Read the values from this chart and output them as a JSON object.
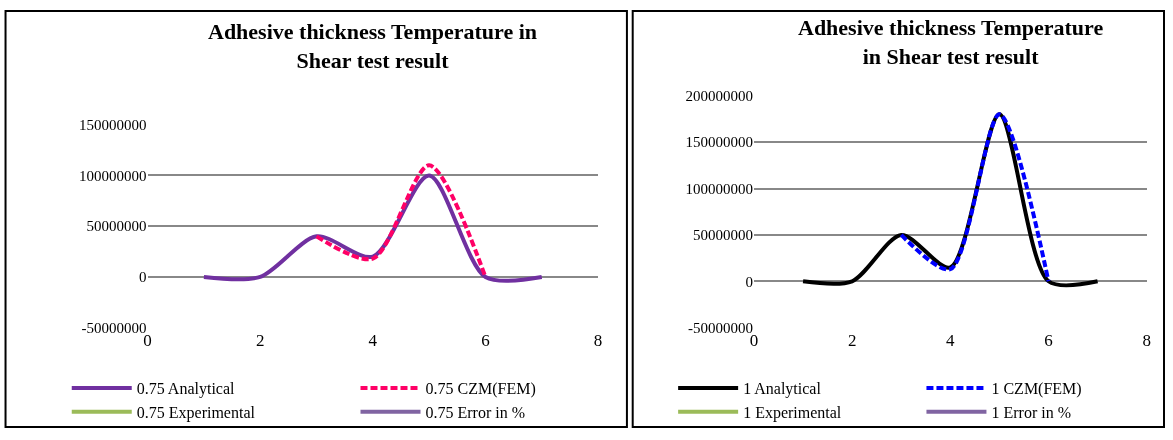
{
  "chart_data": [
    {
      "type": "line",
      "title": "Adhesive thickness Temperature in Shear test result",
      "x": [
        1,
        2,
        3,
        4,
        5,
        6,
        7
      ],
      "xlim": [
        0,
        8
      ],
      "xticks": [
        0,
        2,
        4,
        6,
        8
      ],
      "ylim": [
        -50000000,
        150000000
      ],
      "yticks": [
        -50000000,
        0,
        50000000,
        100000000,
        150000000
      ],
      "grid": "y",
      "legend": "bottom",
      "series": [
        {
          "name": "0.75 Analytical",
          "color": "#7030a0",
          "line_style": "solid",
          "values": [
            0,
            0,
            40000000,
            20000000,
            100000000,
            0,
            0
          ]
        },
        {
          "name": "0.75 CZM(FEM)",
          "color": "#ff0066",
          "line_style": "dashed",
          "values": [
            null,
            null,
            40000000,
            18000000,
            110000000,
            0,
            null
          ]
        },
        {
          "name": "0.75 Experimental",
          "color": "#9bbb59",
          "line_style": "solid",
          "values": [
            null,
            null,
            null,
            null,
            null,
            null,
            null
          ]
        },
        {
          "name": "0.75 Error in %",
          "color": "#8064a2",
          "line_style": "solid",
          "values": [
            null,
            null,
            null,
            null,
            null,
            null,
            null
          ]
        }
      ]
    },
    {
      "type": "line",
      "title": "Adhesive thickness Temperature in Shear test result",
      "x": [
        1,
        2,
        3,
        4,
        5,
        6,
        7
      ],
      "xlim": [
        0,
        8
      ],
      "xticks": [
        0,
        2,
        4,
        6,
        8
      ],
      "ylim": [
        -50000000,
        200000000
      ],
      "yticks": [
        -50000000,
        0,
        50000000,
        100000000,
        150000000,
        200000000
      ],
      "grid": "y",
      "legend": "bottom",
      "series": [
        {
          "name": "1 Analytical",
          "color": "#000000",
          "line_style": "solid",
          "values": [
            0,
            0,
            50000000,
            15000000,
            180000000,
            0,
            0
          ]
        },
        {
          "name": "1 CZM(FEM)",
          "color": "#0000ff",
          "line_style": "dashed",
          "values": [
            null,
            null,
            50000000,
            13000000,
            180000000,
            0,
            null
          ]
        },
        {
          "name": "1 Experimental",
          "color": "#9bbb59",
          "line_style": "solid",
          "values": [
            null,
            null,
            null,
            null,
            null,
            null,
            null
          ]
        },
        {
          "name": "1 Error in %",
          "color": "#8064a2",
          "line_style": "solid",
          "values": [
            null,
            null,
            null,
            null,
            null,
            null,
            null
          ]
        }
      ]
    }
  ]
}
